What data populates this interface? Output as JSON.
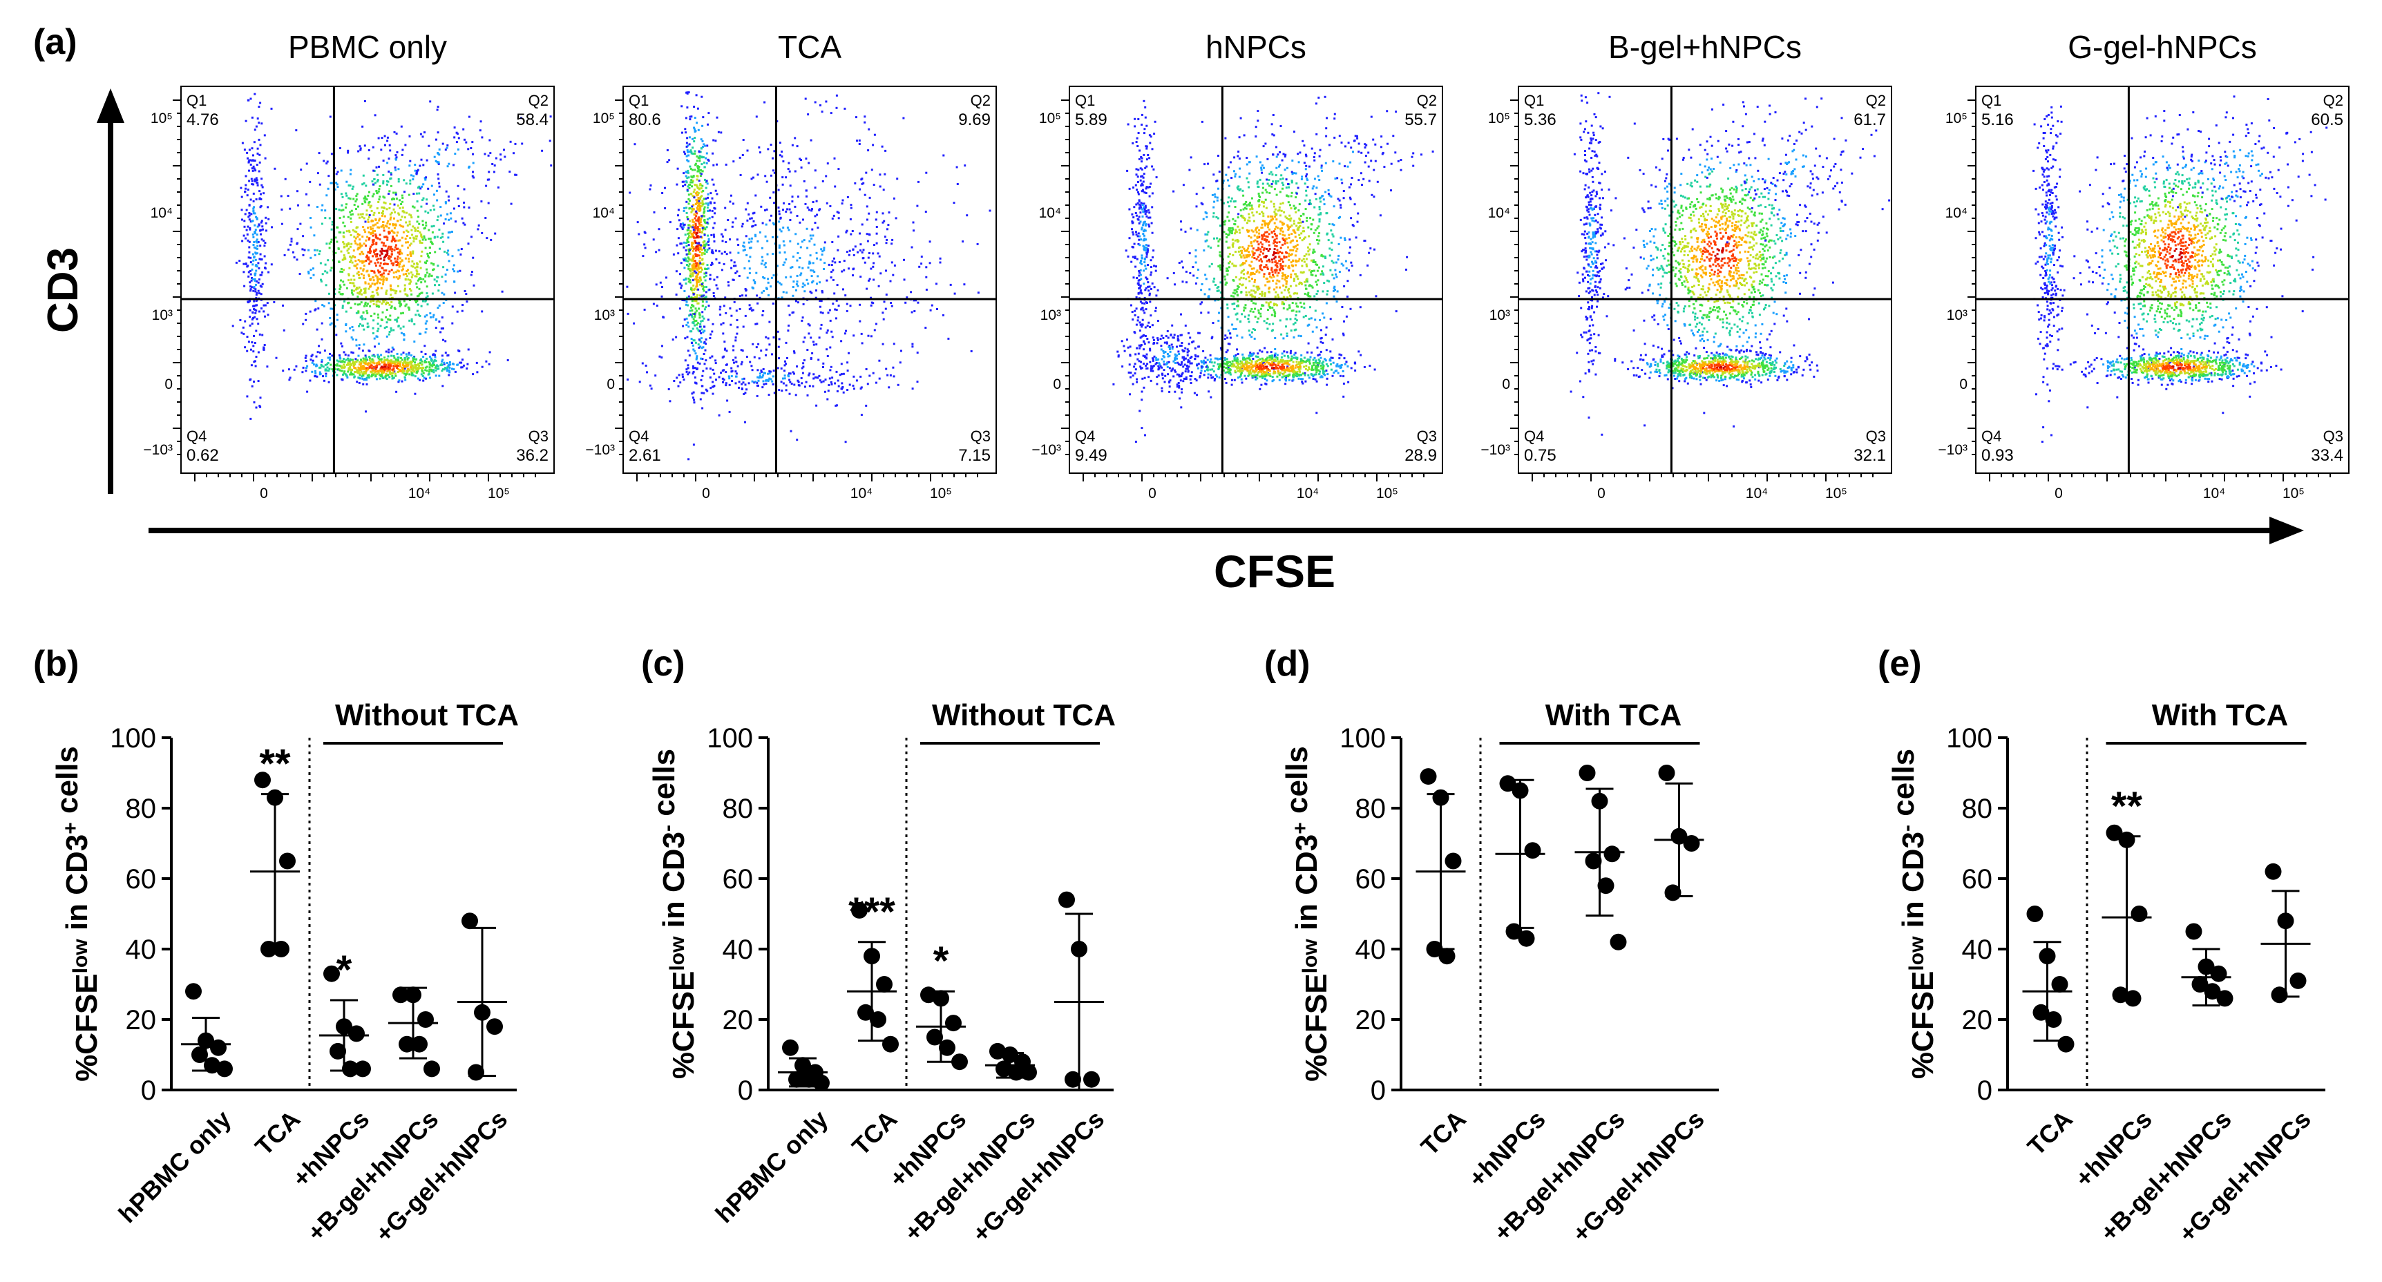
{
  "figure": {
    "panel_labels": [
      "(a)",
      "(b)",
      "(c)",
      "(d)",
      "(e)"
    ],
    "y_axis_label": "CD3",
    "x_axis_label": "CFSE",
    "colors": {
      "ink": "#000000",
      "dots_low": "#1a1aff",
      "dots_high": "#d00000"
    }
  },
  "flow_panels": [
    {
      "title": "PBMC only",
      "q1": "4.76",
      "q2": "58.4",
      "q3": "36.2",
      "q4": "0.62"
    },
    {
      "title": "TCA",
      "q1": "80.6",
      "q2": "9.69",
      "q3": "7.15",
      "q4": "2.61"
    },
    {
      "title": "hNPCs",
      "q1": "5.89",
      "q2": "55.7",
      "q3": "28.9",
      "q4": "9.49"
    },
    {
      "title": "B-gel+hNPCs",
      "q1": "5.36",
      "q2": "61.7",
      "q3": "32.1",
      "q4": "0.75"
    },
    {
      "title": "G-gel-hNPCs",
      "q1": "5.16",
      "q2": "60.5",
      "q3": "33.4",
      "q4": "0.93"
    }
  ],
  "flow_labels": {
    "quadrants": [
      "Q1",
      "Q2",
      "Q3",
      "Q4"
    ],
    "y_ticks": [
      "10⁵",
      "10⁴",
      "10³",
      "0",
      "−10³"
    ],
    "x_ticks": [
      "0",
      "10⁴",
      "10⁵"
    ]
  },
  "chart_data": [
    {
      "type": "scatter",
      "panel": "(b)",
      "ylabel": "%CFSE^low in CD3^+ cells",
      "ylim": [
        0,
        100
      ],
      "yticks": [
        "0",
        "20",
        "40",
        "60",
        "80",
        "100"
      ],
      "categories": [
        "hPBMC only",
        "TCA",
        "+hNPCs",
        "+B-gel+hNPCs",
        "+G-gel+hNPCs"
      ],
      "group_label": "Without TCA",
      "points": [
        [
          28,
          14,
          12,
          10,
          7,
          6
        ],
        [
          88,
          83,
          65,
          40,
          40
        ],
        [
          33,
          18,
          16,
          11,
          6,
          6
        ],
        [
          27,
          27,
          20,
          13,
          13,
          6
        ],
        [
          48,
          22,
          18,
          5
        ]
      ],
      "means": [
        13,
        62,
        15.5,
        19,
        25
      ],
      "sd": [
        7.5,
        22,
        10,
        10,
        21
      ],
      "significance": [
        "",
        "**",
        "*",
        "",
        ""
      ]
    },
    {
      "type": "scatter",
      "panel": "(c)",
      "ylabel": "%CFSE^low in CD3^- cells",
      "ylim": [
        0,
        100
      ],
      "yticks": [
        "0",
        "20",
        "40",
        "60",
        "80",
        "100"
      ],
      "categories": [
        "hPBMC only",
        "TCA",
        "+hNPCs",
        "+B-gel+hNPCs",
        "+G-gel+hNPCs"
      ],
      "group_label": "Without TCA",
      "points": [
        [
          12,
          7,
          5,
          3,
          3,
          2
        ],
        [
          51,
          38,
          30,
          22,
          20,
          13
        ],
        [
          27,
          26,
          19,
          15,
          12,
          8
        ],
        [
          11,
          10,
          8,
          6,
          5,
          5
        ],
        [
          54,
          40,
          3,
          3
        ]
      ],
      "means": [
        5,
        28,
        18,
        7,
        25
      ],
      "sd": [
        4,
        14,
        10,
        3.5,
        25
      ],
      "significance": [
        "",
        "***",
        "*",
        "",
        ""
      ]
    },
    {
      "type": "scatter",
      "panel": "(d)",
      "ylabel": "%CFSE^low in CD3^+ cells",
      "ylim": [
        0,
        100
      ],
      "yticks": [
        "0",
        "20",
        "40",
        "60",
        "80",
        "100"
      ],
      "categories": [
        "TCA",
        "+hNPCs",
        "+B-gel+hNPCs",
        "+G-gel+hNPCs"
      ],
      "group_label": "With TCA",
      "points": [
        [
          89,
          83,
          65,
          40,
          38
        ],
        [
          87,
          85,
          68,
          45,
          43
        ],
        [
          90,
          82,
          67,
          65,
          58,
          42
        ],
        [
          90,
          72,
          70,
          56
        ]
      ],
      "means": [
        62,
        67,
        67.5,
        71
      ],
      "sd": [
        22,
        21,
        18,
        16
      ],
      "significance": [
        "",
        "",
        "",
        ""
      ]
    },
    {
      "type": "scatter",
      "panel": "(e)",
      "ylabel": "%CFSE^low in CD3^- cells",
      "ylim": [
        0,
        100
      ],
      "yticks": [
        "0",
        "20",
        "40",
        "60",
        "80",
        "100"
      ],
      "categories": [
        "TCA",
        "+hNPCs",
        "+B-gel+hNPCs",
        "+G-gel+hNPCs"
      ],
      "group_label": "With TCA",
      "points": [
        [
          50,
          38,
          30,
          22,
          20,
          13
        ],
        [
          73,
          71,
          50,
          27,
          26
        ],
        [
          45,
          35,
          33,
          30,
          28,
          26
        ],
        [
          62,
          48,
          31,
          27
        ]
      ],
      "means": [
        28,
        49,
        32,
        41.5
      ],
      "sd": [
        14,
        23,
        8,
        15
      ],
      "significance": [
        "",
        "**",
        "",
        ""
      ]
    }
  ]
}
